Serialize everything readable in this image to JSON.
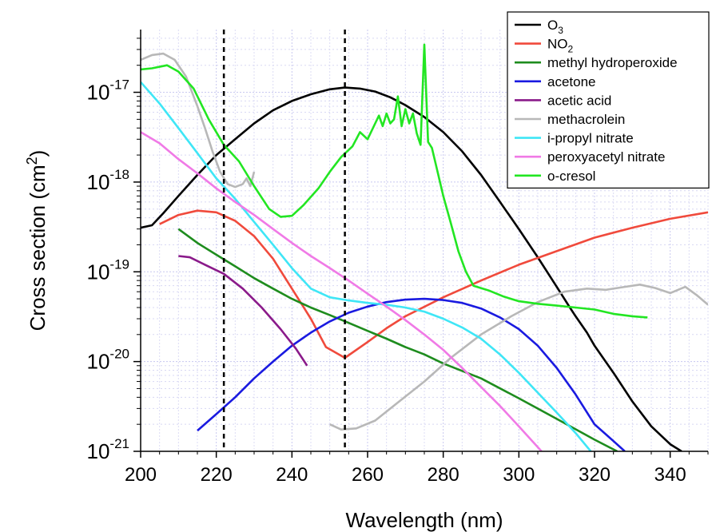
{
  "chart_data": {
    "type": "line",
    "xlabel": "Wavelength (nm)",
    "ylabel": {
      "main": "Cross section (cm",
      "sup": "2",
      "end": ")"
    },
    "yscale": "log",
    "xlim": [
      200,
      350
    ],
    "ylim": [
      1e-21,
      5e-17
    ],
    "xticks": [
      200,
      220,
      240,
      260,
      280,
      300,
      320,
      340
    ],
    "xtick_labels": [
      "200",
      "220",
      "240",
      "260",
      "280",
      "300",
      "320",
      "340"
    ],
    "yticks": [
      {
        "value": 1e-21,
        "base": "10",
        "exp": "-21"
      },
      {
        "value": 1e-20,
        "base": "10",
        "exp": "-20"
      },
      {
        "value": 1e-19,
        "base": "10",
        "exp": "-19"
      },
      {
        "value": 1e-18,
        "base": "10",
        "exp": "-18"
      },
      {
        "value": 1e-17,
        "base": "10",
        "exp": "-17"
      }
    ],
    "grid": true,
    "legend_position": "top-right",
    "vlines": [
      222,
      254
    ],
    "series": [
      {
        "name": "O3",
        "label_main": "O",
        "label_sub": "3",
        "color": "#000000",
        "points": [
          [
            200,
            3.1e-19
          ],
          [
            203,
            3.3e-19
          ],
          [
            206,
            4.5e-19
          ],
          [
            210,
            7e-19
          ],
          [
            215,
            1.2e-18
          ],
          [
            220,
            2e-18
          ],
          [
            225,
            3e-18
          ],
          [
            230,
            4.5e-18
          ],
          [
            235,
            6.3e-18
          ],
          [
            240,
            8e-18
          ],
          [
            245,
            9.5e-18
          ],
          [
            250,
            1.08e-17
          ],
          [
            254,
            1.13e-17
          ],
          [
            258,
            1.1e-17
          ],
          [
            262,
            1.02e-17
          ],
          [
            266,
            8.8e-18
          ],
          [
            270,
            7.2e-18
          ],
          [
            275,
            5.3e-18
          ],
          [
            280,
            3.6e-18
          ],
          [
            285,
            2.2e-18
          ],
          [
            290,
            1.2e-18
          ],
          [
            295,
            6e-19
          ],
          [
            300,
            3e-19
          ],
          [
            305,
            1.45e-19
          ],
          [
            310,
            6.8e-20
          ],
          [
            313,
            4.3e-20
          ],
          [
            315,
            3.2e-20
          ],
          [
            318,
            2.1e-20
          ],
          [
            320,
            1.5e-20
          ],
          [
            325,
            7.5e-21
          ],
          [
            330,
            3.6e-21
          ],
          [
            335,
            1.9e-21
          ],
          [
            340,
            1.2e-21
          ],
          [
            343,
            1e-21
          ]
        ]
      },
      {
        "name": "NO2",
        "label_main": "NO",
        "label_sub": "2",
        "color": "#f04a3c",
        "points": [
          [
            205,
            3.4e-19
          ],
          [
            210,
            4.3e-19
          ],
          [
            215,
            4.8e-19
          ],
          [
            220,
            4.6e-19
          ],
          [
            225,
            3.7e-19
          ],
          [
            230,
            2.5e-19
          ],
          [
            235,
            1.4e-19
          ],
          [
            240,
            6.5e-20
          ],
          [
            245,
            3e-20
          ],
          [
            249,
            1.45e-20
          ],
          [
            254,
            1.1e-20
          ],
          [
            260,
            1.65e-20
          ],
          [
            265,
            2.35e-20
          ],
          [
            270,
            3.2e-20
          ],
          [
            280,
            5.2e-20
          ],
          [
            290,
            8e-20
          ],
          [
            300,
            1.2e-19
          ],
          [
            310,
            1.7e-19
          ],
          [
            320,
            2.4e-19
          ],
          [
            330,
            3.1e-19
          ],
          [
            340,
            3.9e-19
          ],
          [
            350,
            4.6e-19
          ]
        ]
      },
      {
        "name": "methyl hydroperoxide",
        "color": "#1e8c1e",
        "points": [
          [
            210,
            3e-19
          ],
          [
            215,
            2.1e-19
          ],
          [
            220,
            1.55e-19
          ],
          [
            225,
            1.15e-19
          ],
          [
            230,
            8.5e-20
          ],
          [
            235,
            6.5e-20
          ],
          [
            240,
            5e-20
          ],
          [
            245,
            4e-20
          ],
          [
            250,
            3.3e-20
          ],
          [
            255,
            2.7e-20
          ],
          [
            260,
            2.2e-20
          ],
          [
            265,
            1.8e-20
          ],
          [
            270,
            1.45e-20
          ],
          [
            275,
            1.2e-20
          ],
          [
            280,
            9.5e-21
          ],
          [
            290,
            6.5e-21
          ],
          [
            300,
            3.9e-21
          ],
          [
            310,
            2.3e-21
          ],
          [
            320,
            1.35e-21
          ],
          [
            326,
            1e-21
          ]
        ]
      },
      {
        "name": "acetone",
        "color": "#1a1ae0",
        "points": [
          [
            215,
            1.7e-21
          ],
          [
            220,
            2.6e-21
          ],
          [
            225,
            4e-21
          ],
          [
            230,
            6.5e-21
          ],
          [
            235,
            1e-20
          ],
          [
            240,
            1.5e-20
          ],
          [
            245,
            2.1e-20
          ],
          [
            250,
            2.8e-20
          ],
          [
            255,
            3.5e-20
          ],
          [
            260,
            4.1e-20
          ],
          [
            265,
            4.6e-20
          ],
          [
            270,
            4.9e-20
          ],
          [
            275,
            5e-20
          ],
          [
            280,
            4.85e-20
          ],
          [
            285,
            4.5e-20
          ],
          [
            290,
            3.9e-20
          ],
          [
            295,
            3.1e-20
          ],
          [
            300,
            2.3e-20
          ],
          [
            305,
            1.5e-20
          ],
          [
            310,
            8.5e-21
          ],
          [
            315,
            4.3e-21
          ],
          [
            320,
            2e-21
          ],
          [
            325,
            1.3e-21
          ],
          [
            328,
            1e-21
          ]
        ]
      },
      {
        "name": "acetic acid",
        "color": "#8a1a8a",
        "points": [
          [
            210,
            1.5e-19
          ],
          [
            213,
            1.45e-19
          ],
          [
            217,
            1.2e-19
          ],
          [
            222,
            9.5e-20
          ],
          [
            227,
            6.5e-20
          ],
          [
            232,
            4e-20
          ],
          [
            237,
            2.3e-20
          ],
          [
            241,
            1.4e-20
          ],
          [
            244,
            9e-21
          ]
        ]
      },
      {
        "name": "methacrolein",
        "color": "#b8b8b8",
        "points": [
          [
            200,
            2.3e-17
          ],
          [
            203,
            2.6e-17
          ],
          [
            206,
            2.7e-17
          ],
          [
            209,
            2.3e-17
          ],
          [
            212,
            1.5e-17
          ],
          [
            215,
            7e-18
          ],
          [
            217,
            4e-18
          ],
          [
            219,
            2.2e-18
          ],
          [
            221,
            1.3e-18
          ],
          [
            223,
            9.5e-19
          ],
          [
            225,
            8.8e-19
          ],
          [
            227,
            9.5e-19
          ],
          [
            228,
            1.1e-18
          ],
          [
            229,
            9e-19
          ],
          [
            230,
            1.3e-18
          ],
          [
            250,
            2e-21
          ],
          [
            253,
            1.75e-21
          ],
          [
            257,
            1.8e-21
          ],
          [
            262,
            2.2e-21
          ],
          [
            268,
            3.5e-21
          ],
          [
            275,
            6e-21
          ],
          [
            282,
            1.1e-20
          ],
          [
            290,
            2e-20
          ],
          [
            298,
            3.2e-20
          ],
          [
            305,
            4.6e-20
          ],
          [
            312,
            6e-20
          ],
          [
            318,
            6.5e-20
          ],
          [
            323,
            6.3e-20
          ],
          [
            328,
            6.8e-20
          ],
          [
            332,
            7.2e-20
          ],
          [
            336,
            6.6e-20
          ],
          [
            340,
            5.8e-20
          ],
          [
            344,
            6.8e-20
          ],
          [
            347,
            5.5e-20
          ],
          [
            350,
            4.3e-20
          ]
        ]
      },
      {
        "name": "i-propyl nitrate",
        "color": "#3fe6f6",
        "points": [
          [
            200,
            1.3e-17
          ],
          [
            205,
            7.5e-18
          ],
          [
            210,
            4e-18
          ],
          [
            215,
            2.1e-18
          ],
          [
            220,
            1.1e-18
          ],
          [
            225,
            6.5e-19
          ],
          [
            230,
            3.6e-19
          ],
          [
            235,
            2e-19
          ],
          [
            240,
            1.1e-19
          ],
          [
            245,
            6.5e-20
          ],
          [
            250,
            5.2e-20
          ],
          [
            255,
            4.8e-20
          ],
          [
            260,
            4.5e-20
          ],
          [
            265,
            4.3e-20
          ],
          [
            270,
            4e-20
          ],
          [
            275,
            3.6e-20
          ],
          [
            280,
            3e-20
          ],
          [
            285,
            2.4e-20
          ],
          [
            290,
            1.8e-20
          ],
          [
            295,
            1.2e-20
          ],
          [
            300,
            7.5e-21
          ],
          [
            305,
            4.5e-21
          ],
          [
            310,
            2.7e-21
          ],
          [
            315,
            1.6e-21
          ],
          [
            319,
            1e-21
          ]
        ]
      },
      {
        "name": "peroxyacetyl nitrate",
        "color": "#f07ae6",
        "points": [
          [
            200,
            3.6e-18
          ],
          [
            205,
            2.7e-18
          ],
          [
            210,
            1.8e-18
          ],
          [
            215,
            1.25e-18
          ],
          [
            220,
            8.5e-19
          ],
          [
            225,
            6e-19
          ],
          [
            230,
            4.3e-19
          ],
          [
            235,
            3e-19
          ],
          [
            240,
            2.1e-19
          ],
          [
            245,
            1.5e-19
          ],
          [
            250,
            1.1e-19
          ],
          [
            255,
            8e-20
          ],
          [
            260,
            5.7e-20
          ],
          [
            265,
            4.1e-20
          ],
          [
            270,
            2.9e-20
          ],
          [
            275,
            2e-20
          ],
          [
            280,
            1.35e-20
          ],
          [
            285,
            8.5e-21
          ],
          [
            290,
            5.2e-21
          ],
          [
            295,
            3.2e-21
          ],
          [
            300,
            1.9e-21
          ],
          [
            306,
            1e-21
          ]
        ]
      },
      {
        "name": "o-cresol",
        "color": "#22e622",
        "points": [
          [
            200,
            1.8e-17
          ],
          [
            203,
            1.85e-17
          ],
          [
            207,
            2e-17
          ],
          [
            210,
            1.7e-17
          ],
          [
            214,
            1.1e-17
          ],
          [
            218,
            5e-18
          ],
          [
            222,
            2.6e-18
          ],
          [
            226,
            1.7e-18
          ],
          [
            230,
            9e-19
          ],
          [
            234,
            5e-19
          ],
          [
            237,
            4.1e-19
          ],
          [
            240,
            4.2e-19
          ],
          [
            243,
            5.5e-19
          ],
          [
            247,
            8.5e-19
          ],
          [
            250,
            1.3e-18
          ],
          [
            253,
            1.9e-18
          ],
          [
            256,
            2.5e-18
          ],
          [
            258,
            3.6e-18
          ],
          [
            260,
            3e-18
          ],
          [
            262,
            4.5e-18
          ],
          [
            263,
            5.5e-18
          ],
          [
            264,
            4.2e-18
          ],
          [
            265,
            5.8e-18
          ],
          [
            266,
            4.5e-18
          ],
          [
            267,
            5e-18
          ],
          [
            268,
            9e-18
          ],
          [
            269,
            4.2e-18
          ],
          [
            270,
            6.5e-18
          ],
          [
            271,
            4.5e-18
          ],
          [
            272,
            5.8e-18
          ],
          [
            273,
            3.5e-18
          ],
          [
            274,
            2.6e-18
          ],
          [
            275,
            3.4e-17
          ],
          [
            276,
            2.8e-18
          ],
          [
            277,
            2.4e-18
          ],
          [
            278,
            1.6e-18
          ],
          [
            280,
            7e-19
          ],
          [
            282,
            3.5e-19
          ],
          [
            284,
            1.7e-19
          ],
          [
            286,
            1e-19
          ],
          [
            288,
            7e-20
          ],
          [
            292,
            6.2e-20
          ],
          [
            296,
            5.3e-20
          ],
          [
            300,
            4.7e-20
          ],
          [
            305,
            4.4e-20
          ],
          [
            310,
            4.2e-20
          ],
          [
            315,
            4e-20
          ],
          [
            320,
            3.8e-20
          ],
          [
            325,
            3.4e-20
          ],
          [
            330,
            3.2e-20
          ],
          [
            334,
            3.1e-20
          ]
        ]
      }
    ]
  }
}
